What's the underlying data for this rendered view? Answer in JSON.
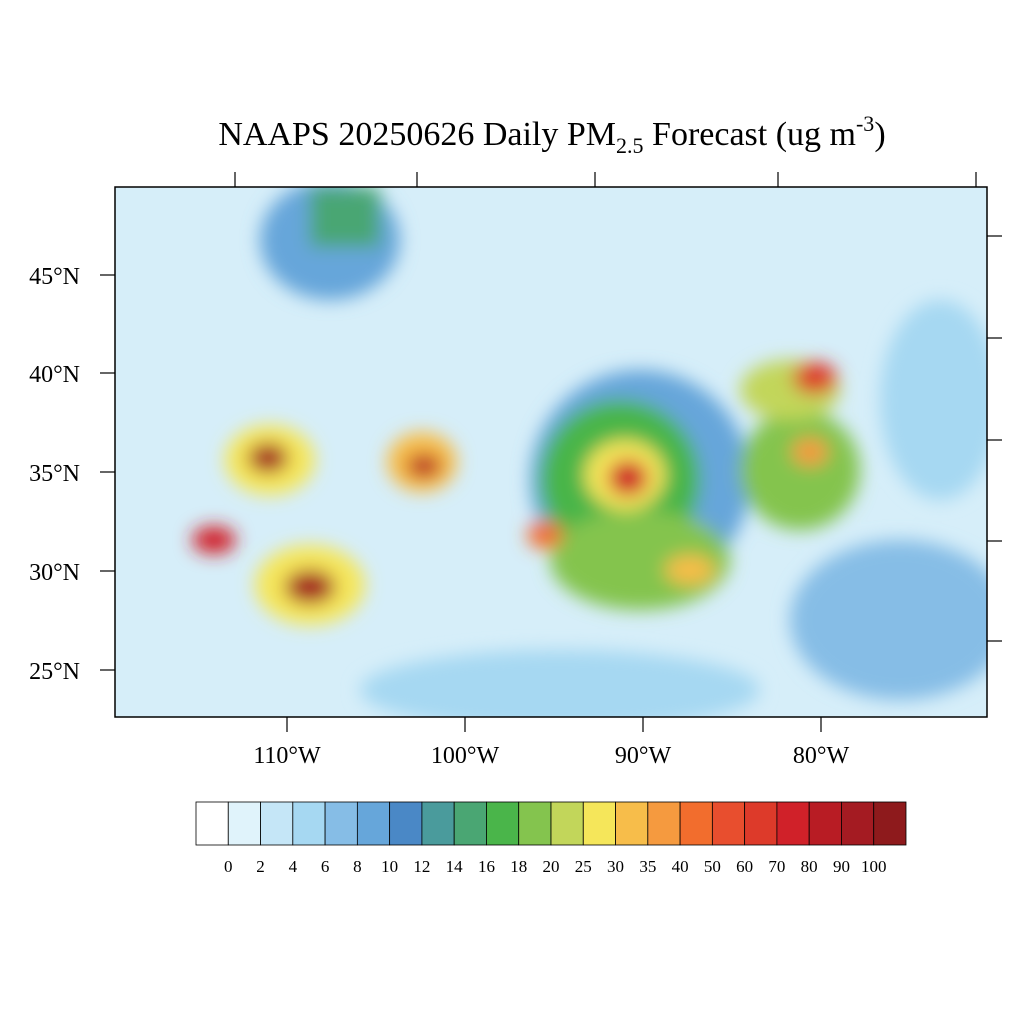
{
  "title": {
    "main": "NAAPS 20250626 Daily PM",
    "sub": "2.5",
    "after": " Forecast (ug m",
    "sup": "-3",
    "close": ")"
  },
  "lat_labels": [
    "45°N",
    "40°N",
    "35°N",
    "30°N",
    "25°N"
  ],
  "lon_labels": [
    "110°W",
    "100°W",
    "90°W",
    "80°W"
  ],
  "colorbar": {
    "ticks": [
      0,
      2,
      4,
      6,
      8,
      10,
      12,
      14,
      16,
      18,
      20,
      25,
      30,
      35,
      40,
      50,
      60,
      70,
      80,
      90,
      100
    ],
    "colors": [
      "#ffffff",
      "#e0f3fb",
      "#c5e6f7",
      "#a6d8f2",
      "#86bde6",
      "#66a6da",
      "#4a88c6",
      "#4a9b9c",
      "#4aa673",
      "#4ab54a",
      "#84c44e",
      "#c2d65a",
      "#f5e65a",
      "#f7bd4a",
      "#f59a3f",
      "#f26d2d",
      "#e84e2e",
      "#dd3a2a",
      "#d02129",
      "#b81c24",
      "#a41b22",
      "#8e1a1c"
    ]
  }
}
